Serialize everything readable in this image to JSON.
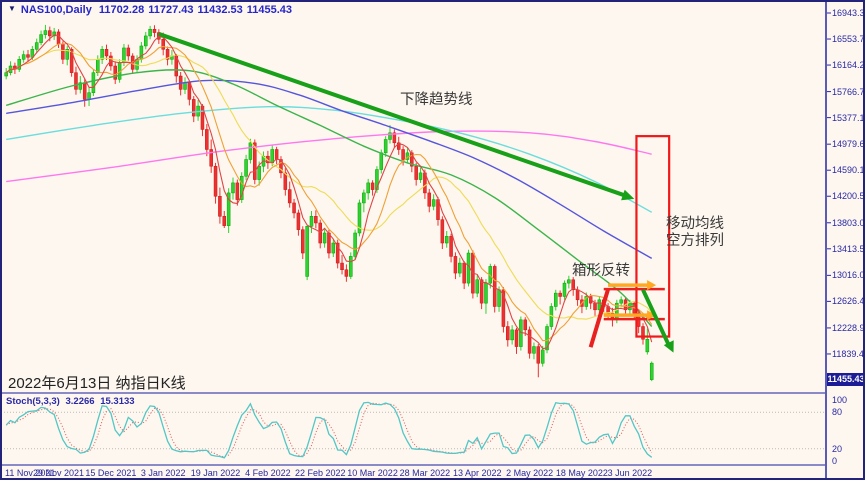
{
  "header": {
    "symbol": "NAS100,Daily",
    "open": "11702.28",
    "high": "11727.43",
    "low": "11432.53",
    "close": "11455.43"
  },
  "colors": {
    "background": "#FDF7EF",
    "frame_border": "#23237B",
    "axis_text": "#2929A3",
    "title_text": "#2626C9",
    "bull_candle": "#2FD32F",
    "bull_border": "#00A000",
    "bear_candle": "#F03030",
    "bear_border": "#C01818",
    "ma_fast": "#E04545",
    "ma_mid": "#F0A035",
    "ma_slow": "#EEDC55",
    "ma_40": "#3CB44B",
    "ma_60": "#5555DD",
    "ma_120": "#6ADDDD",
    "ma_250": "#FF77EE",
    "trendline": "#18A018",
    "rectangle": "#F01818",
    "box_line": "#E82020",
    "orange_arrow": "#FFA820",
    "green_arrow": "#18A018",
    "badge_bg": "#1C1C96",
    "stoch_main": "#53C6C6",
    "stoch_signal": "#E05555",
    "level_dotted": "#BBBBBB"
  },
  "chart_data": {
    "type": "candlestick",
    "symbol": "NAS100",
    "timeframe": "Daily",
    "price_axis": {
      "ylim": [
        11240,
        17078
      ],
      "labels": [
        "16943.30",
        "16553.75",
        "16164.20",
        "15766.70",
        "15377.15",
        "14979.65",
        "14590.10",
        "14200.55",
        "13803.05",
        "13413.50",
        "13016.00",
        "12626.45",
        "12228.95",
        "11839.40"
      ],
      "last_price": 11455.43,
      "last_price_label": "11455.43"
    },
    "time_axis": {
      "visible_slots": 188,
      "ticks": [
        [
          0,
          "11 Nov 2021"
        ],
        [
          12,
          "29 Nov 2021"
        ],
        [
          24,
          "15 Dec 2021"
        ],
        [
          36,
          "3 Jan 2022"
        ],
        [
          48,
          "19 Jan 2022"
        ],
        [
          60,
          "4 Feb 2022"
        ],
        [
          72,
          "22 Feb 2022"
        ],
        [
          84,
          "10 Mar 2022"
        ],
        [
          96,
          "28 Mar 2022"
        ],
        [
          108,
          "13 Apr 2022"
        ],
        [
          120,
          "2 May 2022"
        ],
        [
          132,
          "18 May 2022"
        ],
        [
          143,
          "3 Jun 2022"
        ]
      ]
    },
    "candles": [
      [
        16000,
        16120,
        15950,
        16050
      ],
      [
        16050,
        16220,
        16010,
        16150
      ],
      [
        16150,
        16200,
        16030,
        16100
      ],
      [
        16100,
        16300,
        16060,
        16250
      ],
      [
        16250,
        16380,
        16200,
        16320
      ],
      [
        16320,
        16390,
        16210,
        16280
      ],
      [
        16280,
        16450,
        16240,
        16400
      ],
      [
        16400,
        16560,
        16350,
        16500
      ],
      [
        16500,
        16680,
        16460,
        16620
      ],
      [
        16620,
        16765,
        16560,
        16680
      ],
      [
        16680,
        16740,
        16520,
        16600
      ],
      [
        16600,
        16720,
        16540,
        16660
      ],
      [
        16660,
        16700,
        16420,
        16480
      ],
      [
        16480,
        16520,
        16180,
        16250
      ],
      [
        16250,
        16450,
        16160,
        16400
      ],
      [
        16400,
        16430,
        15990,
        16050
      ],
      [
        16050,
        16140,
        15720,
        15800
      ],
      [
        15800,
        16000,
        15740,
        15900
      ],
      [
        15900,
        15960,
        15540,
        15650
      ],
      [
        15650,
        15830,
        15550,
        15750
      ],
      [
        15750,
        16100,
        15700,
        16050
      ],
      [
        16050,
        16310,
        16000,
        16250
      ],
      [
        16250,
        16450,
        16180,
        16400
      ],
      [
        16400,
        16470,
        16240,
        16300
      ],
      [
        16300,
        16360,
        16080,
        16150
      ],
      [
        16150,
        16220,
        15880,
        15950
      ],
      [
        15950,
        16250,
        15900,
        16200
      ],
      [
        16200,
        16480,
        16150,
        16420
      ],
      [
        16420,
        16470,
        16230,
        16300
      ],
      [
        16300,
        16340,
        16030,
        16100
      ],
      [
        16100,
        16310,
        16060,
        16250
      ],
      [
        16250,
        16510,
        16200,
        16450
      ],
      [
        16450,
        16660,
        16400,
        16600
      ],
      [
        16600,
        16750,
        16550,
        16700
      ],
      [
        16700,
        16760,
        16580,
        16650
      ],
      [
        16650,
        16700,
        16480,
        16550
      ],
      [
        16550,
        16650,
        16310,
        16400
      ],
      [
        16400,
        16440,
        16160,
        16250
      ],
      [
        16250,
        16390,
        16170,
        16300
      ],
      [
        16300,
        16330,
        15900,
        16000
      ],
      [
        16000,
        16060,
        15710,
        15800
      ],
      [
        15800,
        15980,
        15730,
        15900
      ],
      [
        15900,
        15930,
        15560,
        15650
      ],
      [
        15650,
        15700,
        15310,
        15400
      ],
      [
        15400,
        15640,
        15330,
        15550
      ],
      [
        15550,
        15580,
        15100,
        15200
      ],
      [
        15200,
        15280,
        14800,
        14900
      ],
      [
        14900,
        15050,
        14550,
        14650
      ],
      [
        14650,
        14700,
        14090,
        14200
      ],
      [
        14200,
        14330,
        13790,
        13900
      ],
      [
        13900,
        13980,
        13725,
        13760
      ],
      [
        13760,
        14320,
        13650,
        14250
      ],
      [
        14250,
        14480,
        14150,
        14400
      ],
      [
        14400,
        14450,
        14060,
        14150
      ],
      [
        14150,
        14560,
        14100,
        14500
      ],
      [
        14500,
        14820,
        14440,
        14750
      ],
      [
        14750,
        15060,
        14690,
        15000
      ],
      [
        15000,
        15050,
        14380,
        14450
      ],
      [
        14450,
        14720,
        14360,
        14650
      ],
      [
        14650,
        14870,
        14560,
        14800
      ],
      [
        14800,
        14880,
        14610,
        14700
      ],
      [
        14700,
        14960,
        14650,
        14900
      ],
      [
        14900,
        14940,
        14680,
        14750
      ],
      [
        14750,
        14800,
        14470,
        14550
      ],
      [
        14550,
        14620,
        14210,
        14300
      ],
      [
        14300,
        14420,
        14030,
        14100
      ],
      [
        14100,
        14160,
        13870,
        13950
      ],
      [
        13950,
        14000,
        13610,
        13700
      ],
      [
        13700,
        13750,
        13260,
        13350
      ],
      [
        13000,
        13760,
        12945,
        13750
      ],
      [
        13750,
        13980,
        13650,
        13900
      ],
      [
        13900,
        13990,
        13720,
        13800
      ],
      [
        13800,
        13850,
        13420,
        13500
      ],
      [
        13500,
        13720,
        13430,
        13650
      ],
      [
        13650,
        13700,
        13270,
        13350
      ],
      [
        13350,
        13560,
        13290,
        13500
      ],
      [
        13500,
        13550,
        13120,
        13200
      ],
      [
        13200,
        13320,
        13030,
        13100
      ],
      [
        13100,
        13180,
        12920,
        13000
      ],
      [
        13000,
        13360,
        12960,
        13300
      ],
      [
        13300,
        13700,
        13250,
        13650
      ],
      [
        13650,
        14150,
        13600,
        14100
      ],
      [
        14100,
        14300,
        13960,
        14250
      ],
      [
        14250,
        14460,
        14150,
        14400
      ],
      [
        14400,
        14440,
        14210,
        14300
      ],
      [
        14300,
        14650,
        14250,
        14600
      ],
      [
        14600,
        14900,
        14540,
        14850
      ],
      [
        14850,
        15100,
        14790,
        15050
      ],
      [
        15050,
        15265,
        14990,
        15150
      ],
      [
        15150,
        15200,
        14930,
        15000
      ],
      [
        15000,
        15090,
        14820,
        14900
      ],
      [
        14900,
        14950,
        14660,
        14750
      ],
      [
        14750,
        14920,
        14690,
        14850
      ],
      [
        14850,
        14890,
        14560,
        14650
      ],
      [
        14650,
        14700,
        14360,
        14450
      ],
      [
        14450,
        14630,
        14400,
        14550
      ],
      [
        14550,
        14600,
        14160,
        14250
      ],
      [
        14250,
        14310,
        13960,
        14050
      ],
      [
        14050,
        14230,
        13990,
        14150
      ],
      [
        14150,
        14190,
        13760,
        13850
      ],
      [
        13850,
        13900,
        13410,
        13500
      ],
      [
        13500,
        13680,
        13430,
        13600
      ],
      [
        13600,
        13640,
        13210,
        13300
      ],
      [
        13300,
        13360,
        12960,
        13050
      ],
      [
        13050,
        13280,
        12990,
        13200
      ],
      [
        13200,
        13230,
        12810,
        12900
      ],
      [
        12900,
        13400,
        12850,
        13350
      ],
      [
        13350,
        13390,
        12670,
        12750
      ],
      [
        12750,
        13020,
        12690,
        12950
      ],
      [
        12950,
        12990,
        12510,
        12600
      ],
      [
        12600,
        12960,
        12440,
        12900
      ],
      [
        12900,
        13190,
        12820,
        13150
      ],
      [
        13150,
        13180,
        12460,
        12550
      ],
      [
        12550,
        12850,
        12470,
        12800
      ],
      [
        12800,
        12840,
        12160,
        12250
      ],
      [
        12250,
        12330,
        11950,
        12050
      ],
      [
        12050,
        12270,
        11980,
        12200
      ],
      [
        12200,
        12230,
        11840,
        11950
      ],
      [
        11950,
        12400,
        11890,
        12350
      ],
      [
        12350,
        12390,
        12110,
        12200
      ],
      [
        12200,
        12250,
        11770,
        11850
      ],
      [
        11850,
        12010,
        11760,
        11950
      ],
      [
        11950,
        11990,
        11490,
        11700
      ],
      [
        11700,
        11960,
        11650,
        11900
      ],
      [
        11900,
        12290,
        11850,
        12250
      ],
      [
        12250,
        12600,
        12200,
        12550
      ],
      [
        12550,
        12800,
        12490,
        12750
      ],
      [
        12750,
        12790,
        12580,
        12700
      ],
      [
        12700,
        12940,
        12650,
        12900
      ],
      [
        12900,
        13010,
        12820,
        12950
      ],
      [
        12950,
        12990,
        12710,
        12800
      ],
      [
        12800,
        12850,
        12560,
        12650
      ],
      [
        12650,
        12720,
        12450,
        12550
      ],
      [
        12550,
        12760,
        12500,
        12700
      ],
      [
        12700,
        12740,
        12510,
        12600
      ],
      [
        12600,
        12650,
        12410,
        12500
      ],
      [
        12500,
        12700,
        12450,
        12650
      ],
      [
        12650,
        12690,
        12470,
        12550
      ],
      [
        12550,
        12600,
        12360,
        12450
      ],
      [
        12450,
        12530,
        12250,
        12350
      ],
      [
        12350,
        12650,
        12300,
        12600
      ],
      [
        12600,
        12700,
        12550,
        12650
      ],
      [
        12650,
        12680,
        12420,
        12500
      ],
      [
        12500,
        12650,
        12440,
        12600
      ],
      [
        12600,
        12630,
        12360,
        12450
      ],
      [
        12450,
        12490,
        12150,
        12250
      ],
      [
        12250,
        12300,
        11980,
        12060
      ],
      [
        12060,
        12220,
        11830,
        11870
      ],
      [
        11702,
        11727,
        11432,
        11455
      ]
    ],
    "candle_color_overrides": {
      "147": "bull",
      "148": "bull"
    },
    "moving_averages": {
      "computed": [
        {
          "name": "MA5",
          "window": 5,
          "color_key": "ma_fast"
        },
        {
          "name": "MA10",
          "window": 10,
          "color_key": "ma_mid"
        },
        {
          "name": "MA20",
          "window": 20,
          "color_key": "ma_slow"
        }
      ],
      "anchored": [
        {
          "name": "MA40",
          "color_key": "ma_40",
          "points": [
            [
              0,
              15560
            ],
            [
              15,
              15850
            ],
            [
              30,
              16050
            ],
            [
              42,
              16080
            ],
            [
              52,
              15880
            ],
            [
              62,
              15560
            ],
            [
              72,
              15260
            ],
            [
              82,
              14950
            ],
            [
              92,
              14700
            ],
            [
              102,
              14520
            ],
            [
              112,
              14180
            ],
            [
              122,
              13700
            ],
            [
              132,
              13200
            ],
            [
              141,
              12750
            ],
            [
              148,
              12250
            ]
          ]
        },
        {
          "name": "MA60",
          "color_key": "ma_60",
          "points": [
            [
              0,
              15440
            ],
            [
              15,
              15600
            ],
            [
              30,
              15780
            ],
            [
              45,
              15930
            ],
            [
              57,
              15890
            ],
            [
              67,
              15720
            ],
            [
              77,
              15480
            ],
            [
              87,
              15260
            ],
            [
              97,
              15030
            ],
            [
              107,
              14780
            ],
            [
              117,
              14460
            ],
            [
              127,
              14080
            ],
            [
              137,
              13680
            ],
            [
              148,
              13270
            ]
          ]
        },
        {
          "name": "MA120",
          "color_key": "ma_120",
          "points": [
            [
              0,
              15050
            ],
            [
              20,
              15260
            ],
            [
              40,
              15440
            ],
            [
              60,
              15540
            ],
            [
              75,
              15490
            ],
            [
              90,
              15340
            ],
            [
              105,
              15130
            ],
            [
              120,
              14830
            ],
            [
              135,
              14420
            ],
            [
              148,
              13960
            ]
          ]
        },
        {
          "name": "MA250",
          "color_key": "ma_250",
          "points": [
            [
              0,
              14420
            ],
            [
              25,
              14640
            ],
            [
              50,
              14880
            ],
            [
              75,
              15060
            ],
            [
              100,
              15170
            ],
            [
              120,
              15150
            ],
            [
              135,
              15020
            ],
            [
              148,
              14830
            ]
          ]
        }
      ]
    },
    "annotations": {
      "trendline": {
        "from": [
          35,
          16630
        ],
        "to": [
          144,
          14160
        ]
      },
      "rectangle": {
        "from": [
          144.5,
          15100
        ],
        "to": [
          152,
          12100
        ]
      },
      "box_lines": [
        {
          "price": 12810,
          "from_i": 137,
          "to_i": 151
        },
        {
          "price": 12360,
          "from_i": 137,
          "to_i": 151
        }
      ],
      "red_diagonal": {
        "from": [
          134,
          11940
        ],
        "to": [
          138,
          12810
        ]
      },
      "orange_arrows": [
        {
          "price": 12870,
          "from_i": 138,
          "to_i": 149
        },
        {
          "price": 12420,
          "from_i": 137,
          "to_i": 149
        }
      ],
      "green_arrow": {
        "from": [
          146,
          12800
        ],
        "to": [
          153,
          11860
        ]
      },
      "labels": {
        "trend": "下降趋势线",
        "ma_align_1": "移动均线",
        "ma_align_2": "空方排列",
        "box_reversal": "箱形反转",
        "date_note": "2022年6月13日 纳指日K线"
      }
    },
    "indicator": {
      "title": "Stoch(5,3,3)",
      "value_main": "3.2266",
      "value_signal": "15.3133",
      "k_period": 5,
      "slowing": 3,
      "d_period": 3,
      "ylim": [
        0,
        100
      ],
      "levels": [
        80,
        20
      ],
      "axis_labels": [
        {
          "value": 100,
          "label": "100"
        },
        {
          "value": 80,
          "label": "80"
        },
        {
          "value": 20,
          "label": "20"
        },
        {
          "value": 0,
          "label": "0"
        }
      ]
    }
  }
}
